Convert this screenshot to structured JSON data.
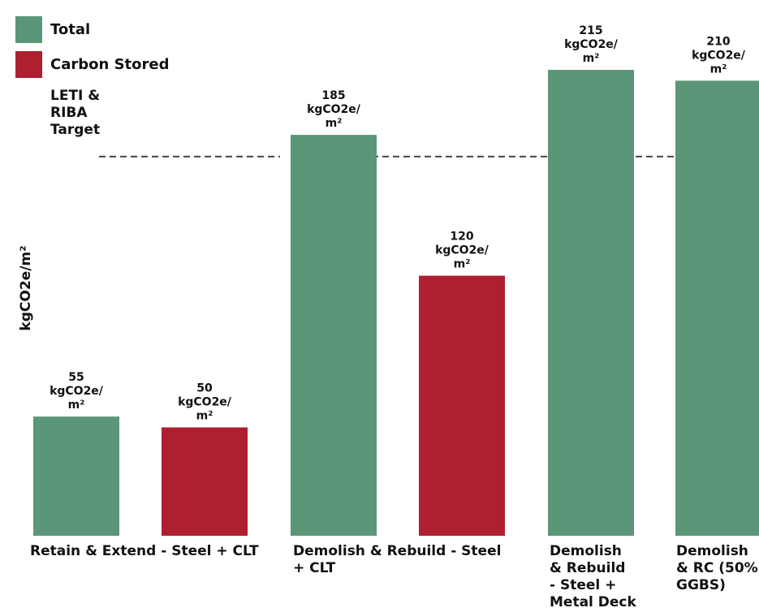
{
  "chart_data": {
    "type": "bar",
    "ylabel": "kgCO2e/m²",
    "ylim": [
      0,
      230
    ],
    "legend": {
      "placement": "top-left",
      "items": [
        {
          "name": "Total",
          "color": "#5a9677"
        },
        {
          "name": "Carbon Stored",
          "color": "#ae2030"
        }
      ]
    },
    "target": {
      "label": [
        "LETI &",
        "RIBA",
        "Target"
      ],
      "value": 175,
      "style": "dashed"
    },
    "groups": [
      {
        "label": [
          "Retain & Extend - Steel + CLT"
        ],
        "bars": [
          {
            "series": "Total",
            "value": 55,
            "label": [
              "55",
              "kgCO2e/",
              "m²"
            ]
          },
          {
            "series": "Carbon Stored",
            "value": 50,
            "label": [
              "50",
              "kgCO2e/",
              "m²"
            ]
          }
        ]
      },
      {
        "label": [
          "Demolish & Rebuild - Steel",
          "+ CLT"
        ],
        "bars": [
          {
            "series": "Total",
            "value": 185,
            "label": [
              "185",
              "kgCO2e/",
              "m²"
            ]
          },
          {
            "series": "Carbon Stored",
            "value": 120,
            "label": [
              "120",
              "kgCO2e/",
              "m²"
            ]
          }
        ]
      },
      {
        "label": [
          "Demolish",
          "& Rebuild",
          "- Steel +",
          "Metal Deck"
        ],
        "bars": [
          {
            "series": "Total",
            "value": 215,
            "label": [
              "215",
              "kgCO2e/",
              "m²"
            ]
          }
        ]
      },
      {
        "label": [
          "Demolish",
          "& RC (50%",
          "GGBS)"
        ],
        "bars": [
          {
            "series": "Total",
            "value": 210,
            "label": [
              "210",
              "kgCO2e/",
              "m²"
            ]
          }
        ]
      }
    ]
  }
}
